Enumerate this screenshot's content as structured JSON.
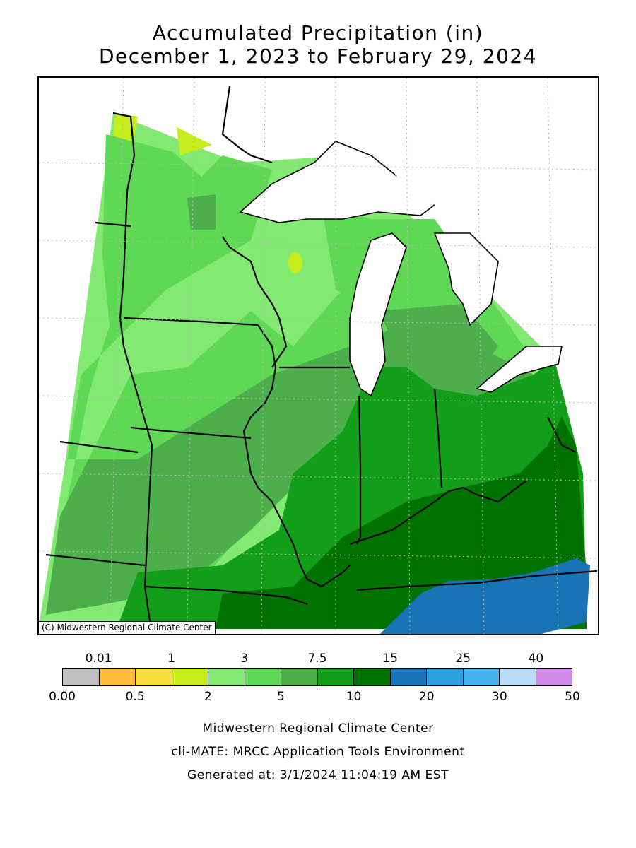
{
  "title": {
    "line1": "Accumulated Precipitation (in)",
    "line2": "December 1, 2023 to February 29, 2024"
  },
  "map": {
    "copyright": "(C) Midwestern Regional Climate Center"
  },
  "legend": {
    "top_labels": [
      "0.01",
      "1",
      "3",
      "7.5",
      "15",
      "25",
      "40"
    ],
    "bottom_labels": [
      "0.00",
      "0.5",
      "2",
      "5",
      "10",
      "20",
      "30",
      "50"
    ],
    "colors": [
      "#bfbfbf",
      "#ffbc3b",
      "#f6dd3c",
      "#c6ec1c",
      "#82ea72",
      "#5fd856",
      "#4caf4c",
      "#139e1a",
      "#007200",
      "#1874b4",
      "#2f9edc",
      "#48b4ec",
      "#b9dcf8",
      "#d08ae8"
    ]
  },
  "footer": {
    "line1": "Midwestern Regional Climate Center",
    "line2": "cli-MATE: MRCC Application Tools Environment",
    "line3": "Generated at: 3/1/2024 11:04:19 AM EST"
  }
}
